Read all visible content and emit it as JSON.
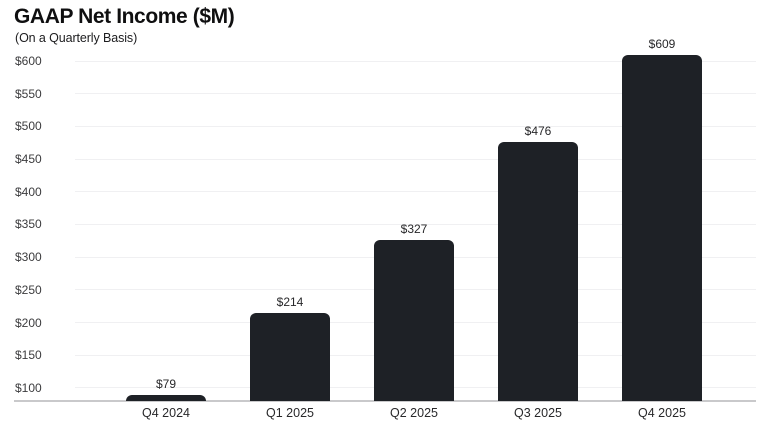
{
  "header": {
    "title": "GAAP Net Income ($M)",
    "subtitle": "(On a Quarterly Basis)"
  },
  "colors": {
    "bar": "#1e2126",
    "gridline": "#f0f0f2",
    "baseline": "#c9c9cb",
    "title": "#0f0f10",
    "subtitle": "#1c1c1e",
    "y_tick_text": "#3c3c3e",
    "label_text": "#28282a",
    "background": "#ffffff"
  },
  "chart_data": {
    "type": "bar",
    "title": "GAAP Net Income ($M)",
    "subtitle": "(On a Quarterly Basis)",
    "categories": [
      "Q4 2024",
      "Q1 2025",
      "Q2 2025",
      "Q3 2025",
      "Q4 2025"
    ],
    "values": [
      79,
      214,
      327,
      476,
      609
    ],
    "value_labels": [
      "$79",
      "$214",
      "$327",
      "$476",
      "$609"
    ],
    "xlabel": "",
    "ylabel": "",
    "y_ticks": [
      100,
      150,
      200,
      250,
      300,
      350,
      400,
      450,
      500,
      550,
      600
    ],
    "y_tick_labels": [
      "$100",
      "$150",
      "$200",
      "$250",
      "$300",
      "$350",
      "$400",
      "$450",
      "$500",
      "$550",
      "$600"
    ],
    "ylim": [
      80,
      610
    ],
    "grid": true,
    "legend": false,
    "series": [
      {
        "name": "GAAP Net Income",
        "values": [
          79,
          214,
          327,
          476,
          609
        ]
      }
    ]
  }
}
